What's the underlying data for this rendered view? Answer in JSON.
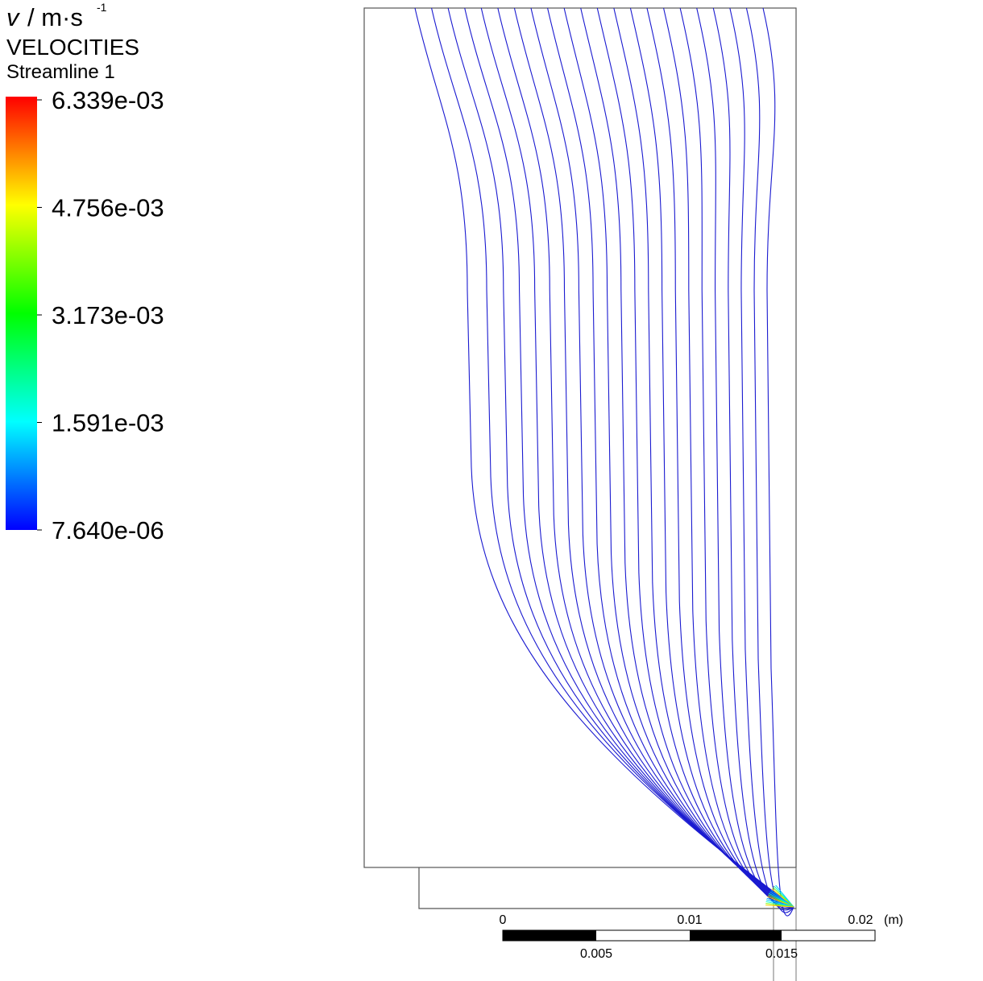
{
  "legend": {
    "symbol": "v",
    "unit": "/ m·s",
    "exponent": "-1",
    "title": "VELOCITIES",
    "subtitle": "Streamline 1",
    "ticks": [
      "6.339e-03",
      "4.756e-03",
      "3.173e-03",
      "1.591e-03",
      "7.640e-06"
    ]
  },
  "scale_bar": {
    "top_labels": [
      "0",
      "0.01",
      "0.02"
    ],
    "unit": "(m)",
    "bottom_labels": [
      "0.005",
      "0.015"
    ]
  }
}
